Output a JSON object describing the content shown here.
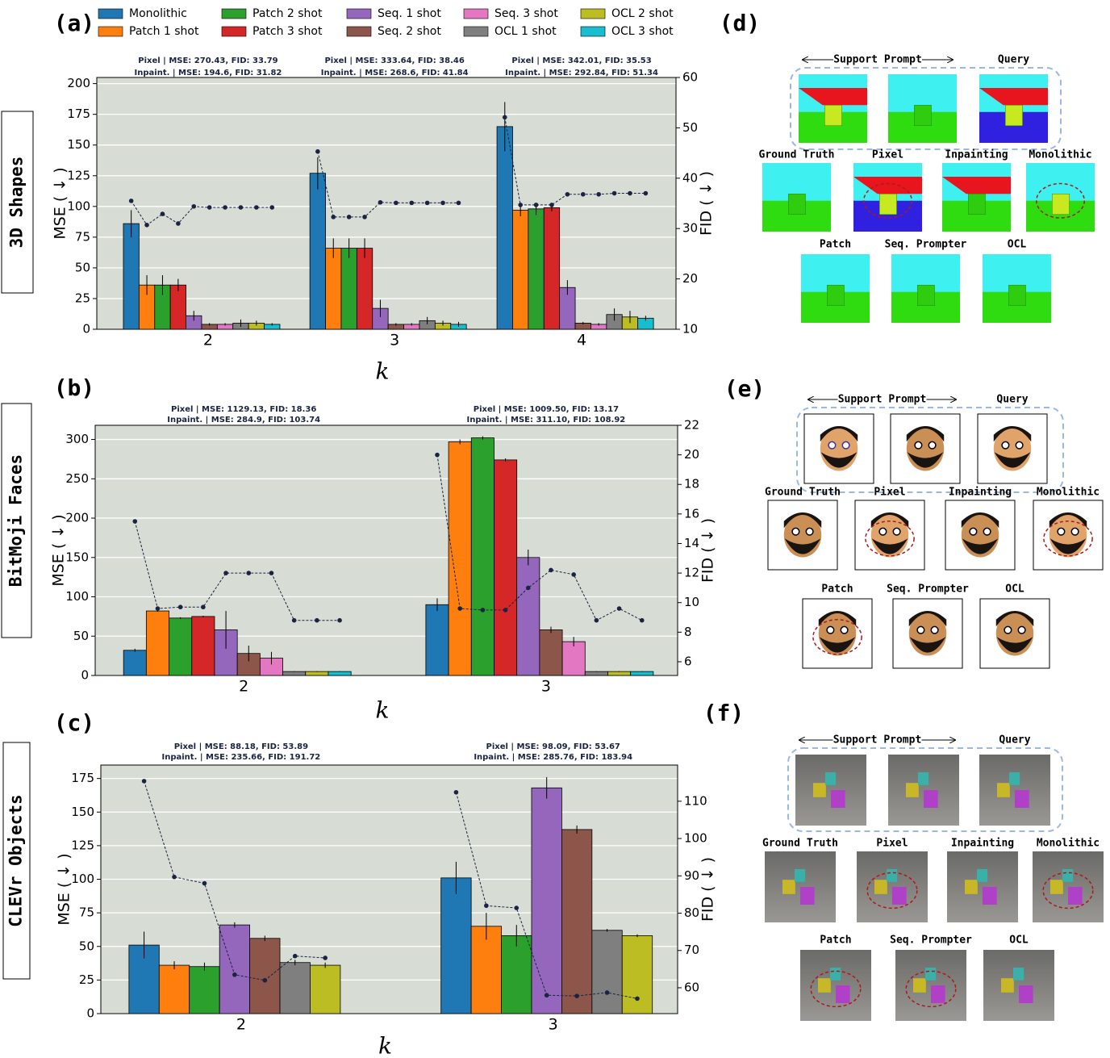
{
  "chart_data": [
    {
      "type": "bar",
      "label": "(a)",
      "xlabel": "k",
      "ylabel": "MSE ( ↓ )",
      "y2label": "FID ( ↓ )",
      "legend": true,
      "grid": true,
      "categories": [
        "2",
        "3",
        "4"
      ],
      "annotations": [
        [
          "Pixel | MSE: 270.43, FID: 33.79",
          "Inpaint. | MSE: 194.6, FID: 31.82"
        ],
        [
          "Pixel | MSE: 333.64, FID: 38.46",
          "Inpaint. | MSE: 268.6, FID: 41.84"
        ],
        [
          "Pixel | MSE: 342.01, FID: 35.53",
          "Inpaint. | MSE: 292.84, FID: 51.34"
        ]
      ],
      "ylim": [
        0,
        205
      ],
      "yticks": [
        0,
        25,
        50,
        75,
        100,
        125,
        150,
        175,
        200
      ],
      "y2lim": [
        10,
        60
      ],
      "y2ticks": [
        10,
        20,
        30,
        40,
        50,
        60
      ],
      "series": [
        {
          "name": "Monolithic",
          "color": "#1f77b4",
          "values": [
            86,
            127,
            165
          ],
          "errors": [
            11,
            13,
            20
          ],
          "fid_values": [
            35.5,
            45.3,
            52.1
          ]
        },
        {
          "name": "Patch 1 shot",
          "color": "#ff7f0e",
          "values": [
            36,
            66,
            97
          ],
          "errors": [
            8,
            8,
            5
          ],
          "fid_values": [
            30.7,
            32.3,
            34.7
          ]
        },
        {
          "name": "Patch 2 shot",
          "color": "#2ca02c",
          "values": [
            36,
            66,
            98
          ],
          "errors": [
            8,
            8,
            5
          ],
          "fid_values": [
            32.9,
            32.3,
            34.7
          ]
        },
        {
          "name": "Patch 3 shot",
          "color": "#d62728",
          "values": [
            36,
            66,
            99
          ],
          "errors": [
            5,
            8,
            3
          ],
          "fid_values": [
            31,
            32.3,
            34.7
          ]
        },
        {
          "name": "Seq. 1 shot",
          "color": "#9467bd",
          "values": [
            11,
            17,
            34
          ],
          "errors": [
            4,
            7,
            6
          ],
          "fid_values": [
            34.4,
            35.2,
            36.8
          ]
        },
        {
          "name": "Seq. 2 shot",
          "color": "#8c564b",
          "values": [
            4,
            4,
            5
          ],
          "errors": [
            1,
            1,
            1
          ],
          "fid_values": [
            34.2,
            35.1,
            36.8
          ]
        },
        {
          "name": "Seq. 3 shot",
          "color": "#e377c2",
          "values": [
            4,
            4,
            4
          ],
          "errors": [
            1,
            1,
            1
          ],
          "fid_values": [
            34.2,
            35.1,
            36.8
          ]
        },
        {
          "name": "OCL 1 shot",
          "color": "#7f7f7f",
          "values": [
            5,
            7,
            12
          ],
          "errors": [
            3,
            3,
            5
          ],
          "fid_values": [
            34.2,
            35.1,
            37
          ]
        },
        {
          "name": "OCL 2 shot",
          "color": "#bcbd22",
          "values": [
            5,
            5,
            10
          ],
          "errors": [
            2,
            2,
            5
          ],
          "fid_values": [
            34.2,
            35.1,
            37
          ]
        },
        {
          "name": "OCL 3 shot",
          "color": "#17becf",
          "values": [
            4,
            4,
            9
          ],
          "errors": [
            1,
            2,
            2
          ],
          "fid_values": [
            34.2,
            35.1,
            37
          ]
        }
      ]
    },
    {
      "type": "bar",
      "label": "(b)",
      "xlabel": "k",
      "ylabel": "MSE ( ↓ )",
      "y2label": "FID ( ↓ )",
      "legend": false,
      "grid": true,
      "categories": [
        "2",
        "3"
      ],
      "annotations": [
        [
          "Pixel | MSE: 1129.13, FID: 18.36",
          "Inpaint. | MSE: 284.9, FID: 103.74"
        ],
        [
          "Pixel | MSE: 1009.50, FID: 13.17",
          "Inpaint. | MSE: 311.10, FID: 108.92"
        ]
      ],
      "ylim": [
        0,
        318
      ],
      "yticks": [
        0,
        50,
        100,
        150,
        200,
        250,
        300
      ],
      "y2lim": [
        5.07,
        22
      ],
      "y2ticks": [
        6,
        8,
        10,
        12,
        14,
        16,
        18,
        20,
        22
      ],
      "series": [
        {
          "name": "Monolithic",
          "color": "#1f77b4",
          "values": [
            32,
            90
          ],
          "errors": [
            2,
            8
          ],
          "fid_values": [
            15.5,
            20
          ]
        },
        {
          "name": "Patch 1 shot",
          "color": "#ff7f0e",
          "values": [
            82,
            297
          ],
          "errors": [
            1,
            3
          ],
          "fid_values": [
            9.6,
            9.6
          ]
        },
        {
          "name": "Patch 2 shot",
          "color": "#2ca02c",
          "values": [
            73,
            302
          ],
          "errors": [
            1,
            2
          ],
          "fid_values": [
            9.7,
            9.5
          ]
        },
        {
          "name": "Patch 3 shot",
          "color": "#d62728",
          "values": [
            75,
            274
          ],
          "errors": [
            1,
            2
          ],
          "fid_values": [
            9.7,
            9.5
          ]
        },
        {
          "name": "Seq. 1 shot",
          "color": "#9467bd",
          "values": [
            58,
            150
          ],
          "errors": [
            24,
            10
          ],
          "fid_values": [
            12,
            11
          ]
        },
        {
          "name": "Seq. 2 shot",
          "color": "#8c564b",
          "values": [
            28,
            58
          ],
          "errors": [
            10,
            4
          ],
          "fid_values": [
            12,
            12.2
          ]
        },
        {
          "name": "Seq. 3 shot",
          "color": "#e377c2",
          "values": [
            22,
            43
          ],
          "errors": [
            8,
            6
          ],
          "fid_values": [
            12,
            11.9
          ]
        },
        {
          "name": "OCL 1 shot",
          "color": "#7f7f7f",
          "values": [
            5,
            5
          ],
          "errors": [
            0.5,
            0.5
          ],
          "fid_values": [
            8.8,
            8.8
          ]
        },
        {
          "name": "OCL 2 shot",
          "color": "#bcbd22",
          "values": [
            5,
            5
          ],
          "errors": [
            0.5,
            0.5
          ],
          "fid_values": [
            8.8,
            9.6
          ]
        },
        {
          "name": "OCL 3 shot",
          "color": "#17becf",
          "values": [
            5,
            5
          ],
          "errors": [
            0.5,
            0.5
          ],
          "fid_values": [
            8.8,
            8.8
          ]
        }
      ]
    },
    {
      "type": "bar",
      "label": "(c)",
      "xlabel": "k",
      "ylabel": "MSE ( ↓ )",
      "y2label": "FID ( ↓ )",
      "legend": false,
      "grid": true,
      "categories": [
        "2",
        "3"
      ],
      "annotations": [
        [
          "Pixel | MSE: 88.18, FID: 53.89",
          "Inpaint. | MSE: 235.66, FID: 191.72"
        ],
        [
          "Pixel | MSE: 98.09, FID: 53.67",
          "Inpaint. | MSE: 285.76, FID: 183.94"
        ]
      ],
      "ylim": [
        0,
        185
      ],
      "yticks": [
        0,
        25,
        50,
        75,
        100,
        125,
        150,
        175
      ],
      "y2lim": [
        53.07,
        119.7
      ],
      "y2ticks": [
        60,
        70,
        80,
        90,
        100,
        110
      ],
      "series": [
        {
          "name": "Monolithic",
          "color": "#1f77b4",
          "values": [
            51,
            101
          ],
          "errors": [
            10,
            12
          ],
          "fid_values": [
            115.4,
            112.4
          ]
        },
        {
          "name": "Patch 1 shot",
          "color": "#ff7f0e",
          "values": [
            36,
            65
          ],
          "errors": [
            3,
            10
          ],
          "fid_values": [
            89.7,
            82
          ]
        },
        {
          "name": "Patch 2 shot",
          "color": "#2ca02c",
          "values": [
            35,
            58
          ],
          "errors": [
            3,
            8
          ],
          "fid_values": [
            88,
            81.4
          ]
        },
        {
          "name": "Seq. 1 shot",
          "color": "#9467bd",
          "values": [
            66,
            168
          ],
          "errors": [
            2,
            8
          ],
          "fid_values": [
            63.5,
            58
          ]
        },
        {
          "name": "Seq. 2 shot",
          "color": "#8c564b",
          "values": [
            56,
            137
          ],
          "errors": [
            2,
            3
          ],
          "fid_values": [
            62,
            57.8
          ]
        },
        {
          "name": "OCL 1 shot",
          "color": "#7f7f7f",
          "values": [
            38,
            62
          ],
          "errors": [
            2,
            1
          ],
          "fid_values": [
            68.5,
            58.7
          ]
        },
        {
          "name": "OCL 2 shot",
          "color": "#bcbd22",
          "values": [
            36,
            58
          ],
          "errors": [
            2,
            1
          ],
          "fid_values": [
            68,
            57.1
          ]
        }
      ]
    }
  ],
  "row_labels": [
    "3D Shapes",
    "BitMoji Faces",
    "CLEVr Objects"
  ],
  "image_panels": [
    {
      "label": "(d)",
      "support_prompt": "Support Prompt",
      "query": "Query",
      "row2": [
        "Ground Truth",
        "Pixel",
        "Inpainting",
        "Monolithic"
      ],
      "row3": [
        "Patch",
        "Seq. Prompter",
        "OCL"
      ]
    },
    {
      "label": "(e)",
      "support_prompt": "Support Prompt",
      "query": "Query",
      "row2": [
        "Ground Truth",
        "Pixel",
        "Inpainting",
        "Monolithic"
      ],
      "row3": [
        "Patch",
        "Seq. Prompter",
        "OCL"
      ]
    },
    {
      "label": "(f)",
      "support_prompt": "Support Prompt",
      "query": "Query",
      "row2": [
        "Ground Truth",
        "Pixel",
        "Inpainting",
        "Monolithic"
      ],
      "row3": [
        "Patch",
        "Seq. Prompter",
        "OCL"
      ]
    }
  ]
}
